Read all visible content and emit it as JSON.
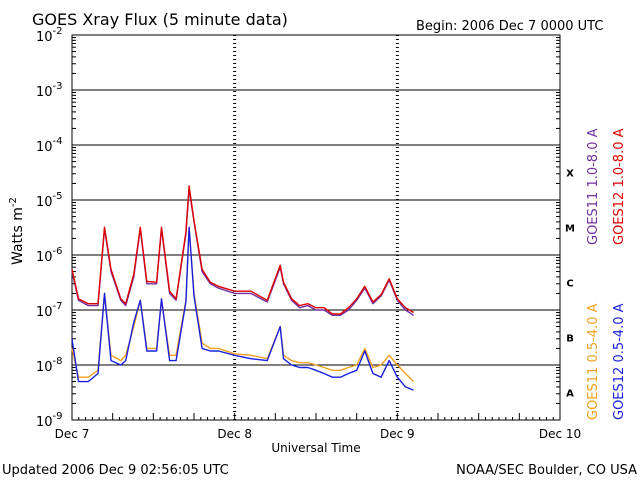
{
  "chart_data": {
    "type": "line",
    "title": "GOES Xray Flux (5 minute data)",
    "begin": "Begin:  2006 Dec 7 0000 UTC",
    "xlabel": "Universal Time",
    "ylabel": "Watts m",
    "ylabel_sup": "-2",
    "yscale": "log",
    "ylim": [
      1e-09,
      0.01
    ],
    "xlim_days": [
      0,
      3
    ],
    "x_ticks": [
      "Dec 7",
      "Dec 8",
      "Dec 9",
      "Dec 10"
    ],
    "y_ticks": [
      {
        "base": "10",
        "exp": "-2"
      },
      {
        "base": "10",
        "exp": "-3"
      },
      {
        "base": "10",
        "exp": "-4"
      },
      {
        "base": "10",
        "exp": "-5"
      },
      {
        "base": "10",
        "exp": "-6"
      },
      {
        "base": "10",
        "exp": "-7"
      },
      {
        "base": "10",
        "exp": "-8"
      },
      {
        "base": "10",
        "exp": "-9"
      }
    ],
    "flare_classes": [
      "X",
      "M",
      "C",
      "B",
      "A"
    ],
    "grid": true,
    "series": [
      {
        "name": "GOES11 1.0-8.0 A",
        "color": "#7030a0",
        "x": [
          0.0,
          0.04,
          0.1,
          0.16,
          0.2,
          0.24,
          0.3,
          0.33,
          0.38,
          0.42,
          0.46,
          0.52,
          0.55,
          0.6,
          0.64,
          0.7,
          0.72,
          0.75,
          0.8,
          0.85,
          0.9,
          1.0,
          1.1,
          1.2,
          1.28,
          1.3,
          1.35,
          1.4,
          1.45,
          1.5,
          1.55,
          1.6,
          1.65,
          1.7,
          1.75,
          1.8,
          1.85,
          1.9,
          1.95,
          2.0,
          2.05,
          2.1
        ],
        "y": [
          5e-07,
          1.5e-07,
          1.2e-07,
          1.2e-07,
          3e-06,
          5e-07,
          1.5e-07,
          1.2e-07,
          4e-07,
          3e-06,
          3e-07,
          3e-07,
          3e-06,
          2e-07,
          1.5e-07,
          2.4e-06,
          1.6e-05,
          4e-06,
          5e-07,
          3e-07,
          2.5e-07,
          2e-07,
          2e-07,
          1.4e-07,
          6e-07,
          3e-07,
          1.5e-07,
          1.1e-07,
          1.2e-07,
          1e-07,
          1e-07,
          8e-08,
          8e-08,
          1e-07,
          1.5e-07,
          2.5e-07,
          1.3e-07,
          1.8e-07,
          3.5e-07,
          1.5e-07,
          1e-07,
          8e-08
        ]
      },
      {
        "name": "GOES12 1.0-8.0 A",
        "color": "#e00000",
        "x": [
          0.0,
          0.04,
          0.1,
          0.16,
          0.2,
          0.24,
          0.3,
          0.33,
          0.38,
          0.42,
          0.46,
          0.52,
          0.55,
          0.6,
          0.64,
          0.7,
          0.72,
          0.75,
          0.8,
          0.85,
          0.9,
          1.0,
          1.1,
          1.2,
          1.28,
          1.3,
          1.35,
          1.4,
          1.45,
          1.5,
          1.55,
          1.6,
          1.65,
          1.7,
          1.75,
          1.8,
          1.85,
          1.9,
          1.95,
          2.0,
          2.05,
          2.1
        ],
        "y": [
          5.5e-07,
          1.6e-07,
          1.3e-07,
          1.3e-07,
          3.2e-06,
          5.5e-07,
          1.6e-07,
          1.3e-07,
          4.5e-07,
          3.2e-06,
          3.3e-07,
          3.2e-07,
          3.2e-06,
          2.2e-07,
          1.6e-07,
          2.6e-06,
          1.8e-05,
          4.2e-06,
          5.5e-07,
          3.2e-07,
          2.7e-07,
          2.2e-07,
          2.2e-07,
          1.5e-07,
          6.5e-07,
          3.2e-07,
          1.6e-07,
          1.2e-07,
          1.3e-07,
          1.1e-07,
          1.1e-07,
          8.5e-08,
          8.5e-08,
          1.1e-07,
          1.6e-07,
          2.7e-07,
          1.4e-07,
          1.9e-07,
          3.7e-07,
          1.6e-07,
          1.1e-07,
          9e-08
        ]
      },
      {
        "name": "GOES11 0.5-4.0 A",
        "color": "#f0a020",
        "x": [
          0.0,
          0.04,
          0.1,
          0.16,
          0.2,
          0.24,
          0.3,
          0.33,
          0.38,
          0.42,
          0.46,
          0.52,
          0.55,
          0.6,
          0.64,
          0.7,
          0.72,
          0.75,
          0.8,
          0.85,
          0.9,
          1.0,
          1.1,
          1.2,
          1.28,
          1.3,
          1.35,
          1.4,
          1.45,
          1.5,
          1.55,
          1.6,
          1.65,
          1.7,
          1.75,
          1.8,
          1.85,
          1.9,
          1.95,
          2.0,
          2.05,
          2.1
        ],
        "y": [
          2e-08,
          6e-09,
          6e-09,
          8e-09,
          2e-07,
          1.5e-08,
          1.2e-08,
          1.5e-08,
          5e-08,
          1.5e-07,
          2e-08,
          2e-08,
          1.5e-07,
          1.5e-08,
          1.5e-08,
          1.5e-07,
          3e-06,
          2e-07,
          2.5e-08,
          2e-08,
          2e-08,
          1.6e-08,
          1.5e-08,
          1.3e-08,
          5e-08,
          1.5e-08,
          1.2e-08,
          1.1e-08,
          1.1e-08,
          1e-08,
          9e-09,
          8e-09,
          8e-09,
          9e-09,
          1e-08,
          2e-08,
          9e-09,
          1e-08,
          1.5e-08,
          1e-08,
          7e-09,
          5e-09
        ]
      },
      {
        "name": "GOES12 0.5-4.0 A",
        "color": "#1a20e0",
        "x": [
          0.0,
          0.04,
          0.1,
          0.16,
          0.2,
          0.24,
          0.3,
          0.33,
          0.38,
          0.42,
          0.46,
          0.52,
          0.55,
          0.6,
          0.64,
          0.7,
          0.72,
          0.75,
          0.8,
          0.85,
          0.9,
          1.0,
          1.1,
          1.2,
          1.28,
          1.3,
          1.35,
          1.4,
          1.45,
          1.5,
          1.55,
          1.6,
          1.65,
          1.7,
          1.75,
          1.8,
          1.85,
          1.9,
          1.95,
          2.0,
          2.05,
          2.1
        ],
        "y": [
          3e-08,
          5e-09,
          5e-09,
          7e-09,
          2e-07,
          1.2e-08,
          1e-08,
          1.2e-08,
          6e-08,
          1.5e-07,
          1.8e-08,
          1.8e-08,
          1.6e-07,
          1.2e-08,
          1.2e-08,
          1.4e-07,
          3.2e-06,
          1.8e-07,
          2e-08,
          1.8e-08,
          1.8e-08,
          1.5e-08,
          1.3e-08,
          1.2e-08,
          5e-08,
          1.3e-08,
          1e-08,
          9e-09,
          9e-09,
          8e-09,
          7e-09,
          6e-09,
          6e-09,
          7e-09,
          8e-09,
          1.8e-08,
          7e-09,
          6e-09,
          1.2e-08,
          6e-09,
          4e-09,
          3.5e-09
        ]
      }
    ]
  },
  "footer": {
    "updated": "Updated 2006 Dec  9 02:56:05 UTC",
    "credit": "NOAA/SEC Boulder, CO USA"
  }
}
